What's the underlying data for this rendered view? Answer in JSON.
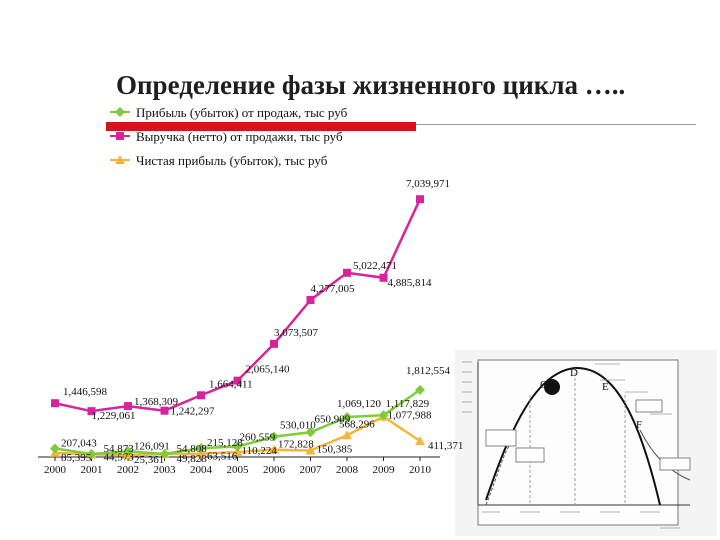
{
  "slide": {
    "title": "Определение фазы жизненного цикла ….."
  },
  "colors": {
    "title_bar": "#d8121b",
    "profit": "#7fcc3a",
    "revenue": "#d8249a",
    "net_profit": "#f5b53a"
  },
  "chart_data": {
    "type": "line",
    "x": [
      "2000",
      "2001",
      "2002",
      "2003",
      "2004",
      "2005",
      "2006",
      "2007",
      "2008",
      "2009",
      "2010"
    ],
    "legend_position": "top-left",
    "grid": false,
    "ylim": [
      0,
      7100000
    ],
    "series": [
      {
        "name": "Прибыль (убыток) от продаж, тыс руб",
        "marker": "diamond",
        "values": [
          207043,
          54873,
          126091,
          54808,
          215128,
          260559,
          530010,
          650909,
          1069120,
          1117829,
          1812554
        ],
        "labels": [
          "207,043",
          "54,873",
          "126,091",
          "54,808",
          "215,128",
          "260,559",
          "530,010",
          "650,909",
          "1,069,120",
          "1,117,829",
          "1,812,554"
        ]
      },
      {
        "name": "Выручка (нетто) от продажи, тыс руб",
        "marker": "square",
        "values": [
          1446598,
          1229061,
          1368309,
          1242297,
          1664411,
          2065140,
          3073507,
          4277005,
          5022471,
          4885814,
          7039971
        ],
        "labels": [
          "1,446,598",
          "1,229,061",
          "1,368,309",
          "1,242,297",
          "1,664,411",
          "2,065,140",
          "3,073,507",
          "4,277,005",
          "5,022,471",
          "4,885,814",
          "7,039,971"
        ]
      },
      {
        "name": "Чистая прибыль (убыток), тыс руб",
        "marker": "triangle",
        "values": [
          85395,
          44573,
          25361,
          49828,
          63516,
          110224,
          172828,
          150385,
          568296,
          1077988,
          411371
        ],
        "labels": [
          "85,395",
          "44,573",
          "25,361",
          "49,828",
          "63,516",
          "110,224",
          "172,828",
          "150,385",
          "568,296",
          "1,077,988",
          "411,371"
        ]
      }
    ]
  },
  "diagram": {
    "letters": [
      "C",
      "D",
      "E",
      "F"
    ]
  }
}
